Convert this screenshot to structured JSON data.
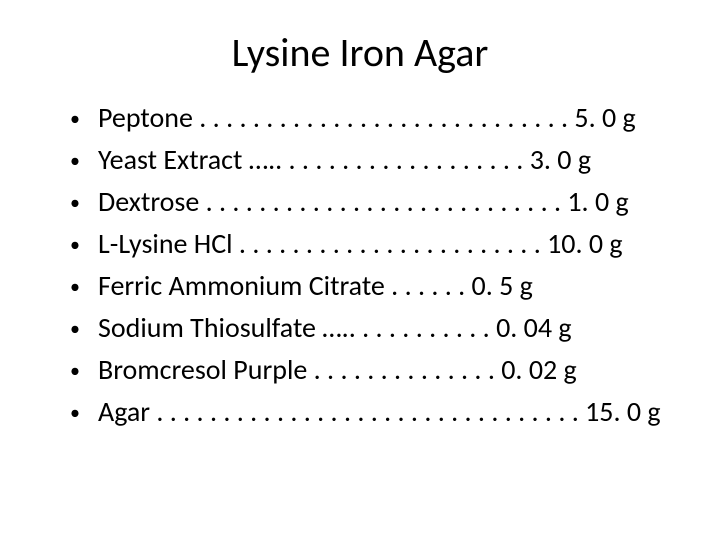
{
  "title": "Lysine Iron Agar",
  "style": {
    "background_color": "#ffffff",
    "text_color": "#000000",
    "title_fontsize": 40,
    "body_fontsize": 28,
    "font_family": "Calibri"
  },
  "ingredients": [
    {
      "text": "Peptone . . . . . . . . . . . . . . . . . . . . . . . . . . . . 5. 0 g"
    },
    {
      "text": "Yeast Extract ….. . . . . . . . . . . . . . . . . . . 3. 0 g"
    },
    {
      "text": "Dextrose . . . . . . . . . . . . . . . . . . . . . . . . . . . 1. 0 g"
    },
    {
      "text": "L-Lysine HCl . . . . . . . . . . . . . . . . . . . . . . . 10. 0 g"
    },
    {
      "text": "Ferric Ammonium Citrate . . . . . . 0. 5 g"
    },
    {
      "text": "Sodium Thiosulfate ….. . . . . . . . . . . 0. 04 g"
    },
    {
      "text": "Bromcresol Purple . . . . . . . . . . . . . . 0. 02 g"
    },
    {
      "text": "Agar . . . . . . . . . . . . . . . . . . . . . . . . . . . . . . . . 15. 0 g"
    }
  ]
}
